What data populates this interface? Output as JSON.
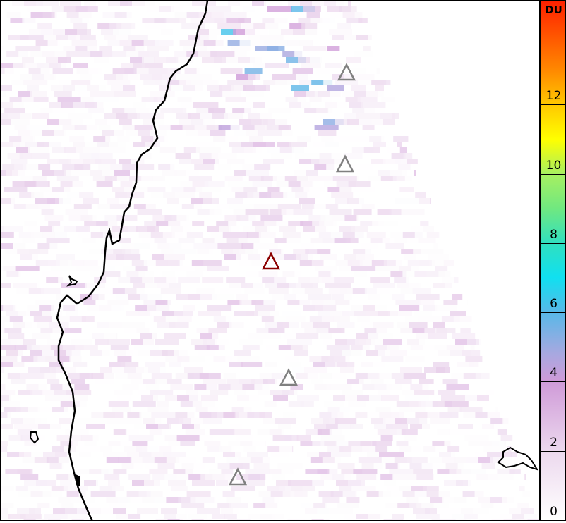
{
  "map": {
    "features": [
      "coastline",
      "satellite-swath-pixels"
    ],
    "volcano_markers": [
      {
        "status": "active",
        "color": "#8b0000"
      },
      {
        "status": "other",
        "color": "#808080"
      },
      {
        "status": "other",
        "color": "#808080"
      },
      {
        "status": "other",
        "color": "#808080"
      },
      {
        "status": "other",
        "color": "#808080"
      }
    ]
  },
  "colorbar": {
    "unit": "DU",
    "ticks": [
      "0",
      "2",
      "4",
      "6",
      "8",
      "10",
      "12"
    ],
    "range": [
      0,
      15
    ],
    "colormap": [
      {
        "v": 0,
        "c": "#ffffff"
      },
      {
        "v": 2,
        "c": "#ecd8ee"
      },
      {
        "v": 4,
        "c": "#cf9ad8"
      },
      {
        "v": 4.8,
        "c": "#a8a8e0"
      },
      {
        "v": 6,
        "c": "#58b8e8"
      },
      {
        "v": 7,
        "c": "#10e0f0"
      },
      {
        "v": 8,
        "c": "#30e0c0"
      },
      {
        "v": 9,
        "c": "#70e880"
      },
      {
        "v": 10,
        "c": "#a8f060"
      },
      {
        "v": 11,
        "c": "#ffff00"
      },
      {
        "v": 12,
        "c": "#ffc800"
      },
      {
        "v": 13,
        "c": "#ff8800"
      },
      {
        "v": 15,
        "c": "#ff2000"
      }
    ]
  }
}
